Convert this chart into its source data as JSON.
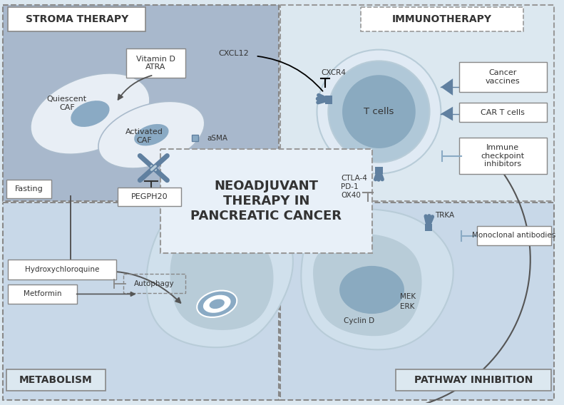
{
  "title": "NEOADJUVANT\nTHERAPY IN\nPANCREATIC CANCER",
  "bg_outer": "#dce8f0",
  "bg_stroma": "#a8b8cc",
  "bg_immuno": "#dce8f0",
  "bg_metabolism": "#c8d8e8",
  "bg_pathway": "#c8d8e8",
  "blue_dark": "#6080a0",
  "blue_med": "#8aaac4",
  "blue_light": "#b8ccd8",
  "blue_lighter": "#d0e0ec",
  "cell_outer": "#b0c8d8",
  "cell_inner": "#8aaac0",
  "white": "#ffffff",
  "text_dark": "#333333",
  "border_color": "#888888",
  "dashed_border": "#999999",
  "arrow_color": "#555555",
  "blue_arrow": "#6080a0",
  "quadrant_labels": {
    "stroma": "STROMA THERAPY",
    "immuno": "IMMUNOTHERAPY",
    "metabolism": "METABOLISM",
    "pathway": "PATHWAY INHIBITION"
  },
  "stroma_labels": {
    "quiescent": "Quiescent\nCAF",
    "activated": "Activated\nCAF",
    "vitamin": "Vitamin D\nATRA",
    "asma": "aSMA",
    "pegph20": "PEGPH20",
    "fasting": "Fasting",
    "cxcl12": "CXCL12"
  },
  "immuno_labels": {
    "tcells": "T cells",
    "cxcr4": "CXCR4",
    "cancer_vaccines": "Cancer\nvaccines",
    "car_t": "CAR T cells",
    "immune_check": "Immune\ncheckpoint\ninhibitors",
    "ctla4": "CTLA-4\nPD-1\nOX40"
  },
  "metabolism_labels": {
    "hydroxy": "Hydroxychloroquine",
    "metformin": "Metformin",
    "autophagy": "Autophagy"
  },
  "pathway_labels": {
    "trka": "TRKA",
    "mek": "MEK",
    "erk": "ERK",
    "cyclin": "Cyclin D",
    "monoclonal": "Monoclonal antibodies"
  }
}
